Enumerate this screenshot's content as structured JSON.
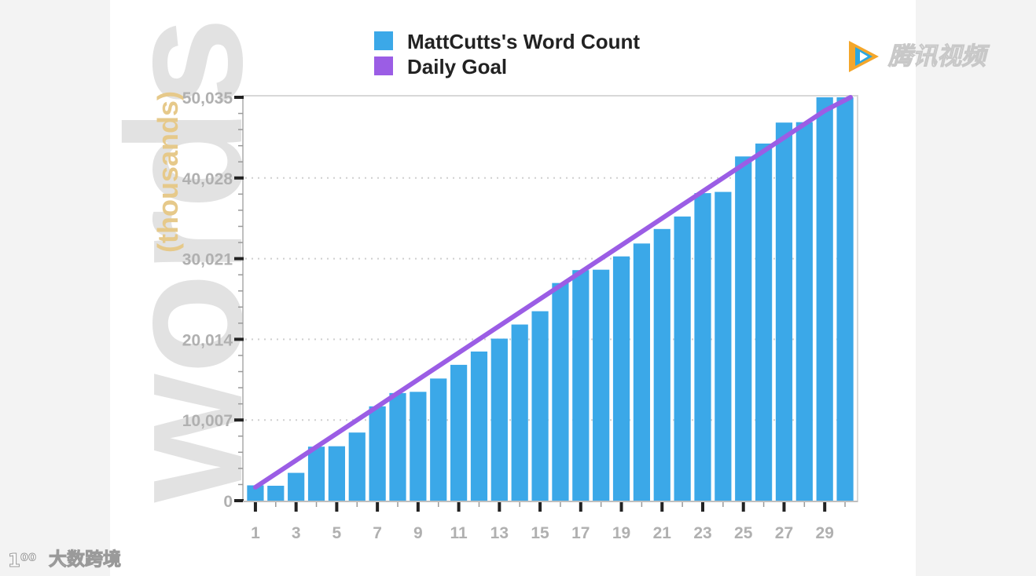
{
  "watermarks": {
    "top_right": "腾讯视频",
    "bottom_left": "大数跨境",
    "bottom_left_logo": "1⁰⁰"
  },
  "chart_data": {
    "type": "bar",
    "ylabel_big": "words",
    "ylabel_sub": "(thousands)",
    "legend": {
      "placement": "top-center",
      "entries": [
        {
          "name": "MattCutts's Word Count",
          "color": "#3ba8e8",
          "kind": "bar"
        },
        {
          "name": "Daily Goal",
          "color": "#9b5de5",
          "kind": "line"
        }
      ]
    },
    "x": [
      1,
      2,
      3,
      4,
      5,
      6,
      7,
      8,
      9,
      10,
      11,
      12,
      13,
      14,
      15,
      16,
      17,
      18,
      19,
      20,
      21,
      22,
      23,
      24,
      25,
      26,
      27,
      28,
      29,
      30
    ],
    "x_tick_labels": [
      "1",
      "3",
      "5",
      "7",
      "9",
      "11",
      "13",
      "15",
      "17",
      "19",
      "21",
      "23",
      "25",
      "27",
      "29"
    ],
    "y_tick_values": [
      0,
      10007,
      20014,
      30021,
      40028,
      50035
    ],
    "y_tick_labels": [
      "0",
      "10,007",
      "20,014",
      "30,021",
      "40,028",
      "50,035"
    ],
    "ylim": [
      0,
      50035
    ],
    "grid": "horizontal-dotted",
    "series": [
      {
        "name": "MattCutts's Word Count",
        "type": "bar",
        "color": "#3ba8e8",
        "values": [
          1900,
          1850,
          3450,
          6700,
          6750,
          8450,
          11700,
          13350,
          13500,
          15150,
          16850,
          18500,
          20100,
          21850,
          23500,
          27000,
          28600,
          28650,
          30300,
          31900,
          33700,
          35250,
          38150,
          38300,
          42700,
          44300,
          46900,
          46950,
          50035,
          50035
        ]
      },
      {
        "name": "Daily Goal",
        "type": "line",
        "color": "#9b5de5",
        "values": [
          1668,
          3336,
          5004,
          6672,
          8339,
          10007,
          11675,
          13343,
          15011,
          16679,
          18346,
          20014,
          21682,
          23350,
          25018,
          26686,
          28353,
          30021,
          31689,
          33357,
          35025,
          36693,
          38360,
          40028,
          41696,
          43364,
          45032,
          46700,
          48367,
          50035
        ]
      }
    ]
  }
}
